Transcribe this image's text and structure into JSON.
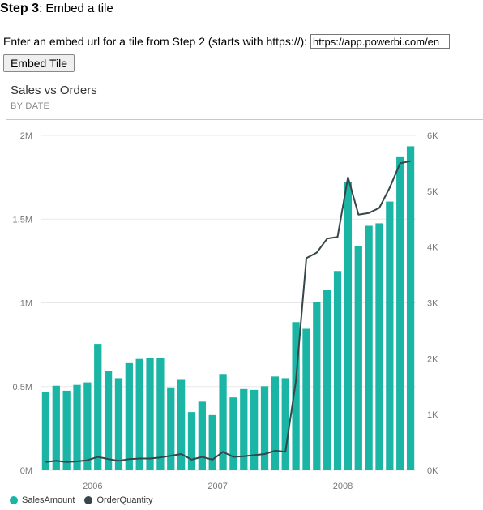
{
  "step": {
    "label": "Step 3",
    "text": ": Embed a tile"
  },
  "embed": {
    "prompt": "Enter an embed url for a tile from Step 2 (starts with https://):",
    "url_value": "https://app.powerbi.com/en",
    "button_label": "Embed Tile"
  },
  "tile": {
    "title": "Sales vs Orders",
    "subtitle": "BY DATE"
  },
  "colors": {
    "sales": "#1ab5a4",
    "orders": "#374649"
  },
  "legend": {
    "sales": "SalesAmount",
    "orders": "OrderQuantity"
  },
  "chart_data": {
    "type": "bar",
    "title": "Sales vs Orders",
    "subtitle": "BY DATE",
    "series": [
      {
        "name": "SalesAmount",
        "axis": "left",
        "kind": "bar",
        "values": [
          470000,
          505000,
          475000,
          510000,
          525000,
          755000,
          595000,
          550000,
          640000,
          665000,
          670000,
          672000,
          495000,
          540000,
          348000,
          410000,
          330000,
          575000,
          435000,
          485000,
          480000,
          502000,
          560000,
          550000,
          885000,
          845000,
          1005000,
          1075000,
          1190000,
          1720000,
          1340000,
          1460000,
          1475000,
          1605000,
          1870000,
          1935000
        ]
      },
      {
        "name": "OrderQuantity",
        "axis": "right",
        "kind": "line",
        "values": [
          150,
          170,
          150,
          160,
          180,
          240,
          200,
          170,
          200,
          210,
          210,
          230,
          260,
          290,
          190,
          240,
          190,
          330,
          240,
          250,
          270,
          290,
          350,
          330,
          1600,
          3800,
          3900,
          4150,
          4180,
          5250,
          4580,
          4610,
          4700,
          5060,
          5500,
          5540
        ]
      }
    ],
    "x_tick_labels": [
      "2006",
      "2007",
      "2008"
    ],
    "x_tick_positions": [
      4.5,
      16.5,
      28.5
    ],
    "y_left": {
      "ticks": [
        0,
        500000,
        1000000,
        1500000,
        2000000
      ],
      "labels": [
        "0M",
        "0.5M",
        "1M",
        "1.5M",
        "2M"
      ],
      "ylim": [
        0,
        2000000
      ]
    },
    "y_right": {
      "ticks": [
        0,
        1000,
        2000,
        3000,
        4000,
        5000,
        6000
      ],
      "labels": [
        "0K",
        "1K",
        "2K",
        "3K",
        "4K",
        "5K",
        "6K"
      ],
      "ylim": [
        0,
        6000
      ]
    },
    "grid": true,
    "legend_position": "bottom-left"
  }
}
